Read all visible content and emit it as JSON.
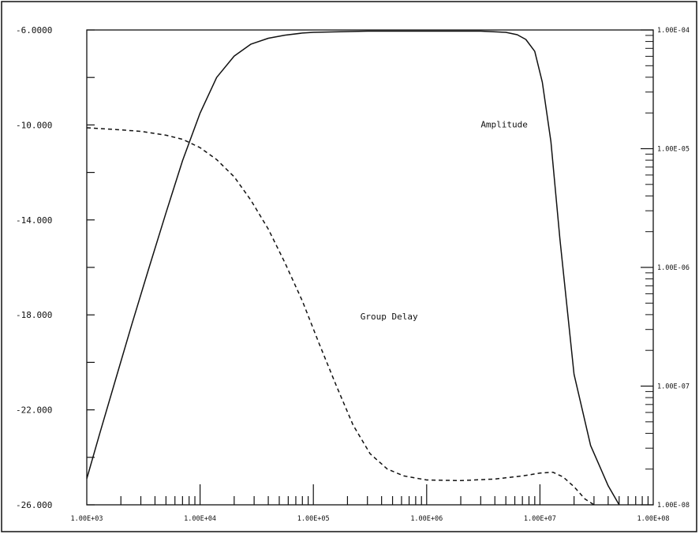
{
  "chart_data": {
    "type": "line",
    "x_scale": "log",
    "xlim": [
      1000,
      100000000
    ],
    "x_ticks": [
      1000,
      10000,
      100000,
      1000000,
      10000000,
      100000000
    ],
    "x_tick_labels": [
      "1.00E+03",
      "1.00E+04",
      "1.00E+05",
      "1.00E+06",
      "1.00E+07",
      "1.00E+08"
    ],
    "y_left": {
      "scale": "linear",
      "lim": [
        -26,
        -6
      ],
      "labeled_ticks": [
        -26,
        -22,
        -18,
        -14,
        -10,
        -6
      ],
      "tick_labels": [
        "-26.000",
        "-22.000",
        "-18.000",
        "-14.000",
        "-10.000",
        "-6.0000"
      ],
      "minor_ticks": [
        -24,
        -20,
        -16,
        -12,
        -8
      ]
    },
    "y_right": {
      "scale": "log",
      "lim": [
        1e-08,
        0.0001
      ],
      "labeled_ticks": [
        1e-08,
        1e-07,
        1e-06,
        1e-05,
        0.0001
      ],
      "tick_labels": [
        "1.00E-08",
        "1.00E-07",
        "1.00E-06",
        "1.00E-05",
        "1.00E-04"
      ]
    },
    "grid": false,
    "series": [
      {
        "name": "Amplitude",
        "axis": "left",
        "style": "solid",
        "color": "#111111",
        "x": [
          1000,
          1300,
          1800,
          2500,
          3500,
          5000,
          7000,
          10000,
          14000,
          20000,
          28000,
          40000,
          56000,
          80000,
          100000,
          300000,
          1000000,
          3000000,
          5000000,
          6300000,
          7500000,
          9000000,
          10500000,
          12500000,
          15000000,
          20000000,
          28000000,
          40000000,
          50000000
        ],
        "y": [
          -24.9,
          -23.0,
          -20.7,
          -18.4,
          -16.1,
          -13.7,
          -11.5,
          -9.5,
          -8.0,
          -7.1,
          -6.6,
          -6.35,
          -6.22,
          -6.13,
          -6.1,
          -6.05,
          -6.05,
          -6.05,
          -6.1,
          -6.2,
          -6.4,
          -6.9,
          -8.2,
          -10.7,
          -14.8,
          -20.5,
          -23.5,
          -25.2,
          -26.0
        ]
      },
      {
        "name": "Group Delay",
        "axis": "right",
        "style": "dashed",
        "color": "#111111",
        "x": [
          1000,
          1800,
          3000,
          5000,
          7000,
          10000,
          14000,
          20000,
          28000,
          40000,
          56000,
          80000,
          112000,
          160000,
          224000,
          316000,
          450000,
          630000,
          1000000,
          2000000,
          4000000,
          7000000,
          10000000,
          13000000,
          16000000,
          20000000,
          25000000,
          30000000,
          38000000,
          45000000,
          55000000
        ],
        "y": [
          1.5e-05,
          1.45e-05,
          1.4e-05,
          1.3e-05,
          1.2e-05,
          1.02e-05,
          8.1e-06,
          5.8e-06,
          3.7e-06,
          2.1e-06,
          1.1e-06,
          5.2e-07,
          2.3e-07,
          1e-07,
          4.7e-08,
          2.7e-08,
          2e-08,
          1.75e-08,
          1.62e-08,
          1.6e-08,
          1.65e-08,
          1.75e-08,
          1.85e-08,
          1.88e-08,
          1.72e-08,
          1.42e-08,
          1.12e-08,
          1e-08,
          9.5e-09,
          9.5e-09,
          1e-08
        ]
      }
    ],
    "annotations": [
      {
        "text": "Amplitude",
        "x": 3000000,
        "y": -10.1,
        "axis": "left"
      },
      {
        "text": "Group Delay",
        "x": 260000,
        "y": -18.2,
        "axis": "left"
      }
    ]
  }
}
